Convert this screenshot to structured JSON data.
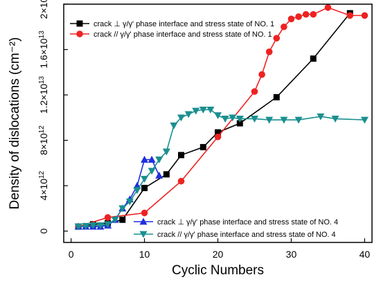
{
  "chart_data": {
    "type": "line",
    "title": "",
    "xlabel": "Cyclic Numbers",
    "ylabel": "Density of dislocations (cm⁻²)",
    "xlim": [
      -1,
      41
    ],
    "ylim": [
      -1000000000000.0,
      20000000000000.0
    ],
    "grid": false,
    "legend_placement": [
      "top-left",
      "bottom-right"
    ],
    "x_ticks": [
      {
        "value": 0,
        "label": "0"
      },
      {
        "value": 10,
        "label": "10"
      },
      {
        "value": 20,
        "label": "20"
      },
      {
        "value": 30,
        "label": "30"
      },
      {
        "value": 40,
        "label": "40"
      }
    ],
    "y_ticks": [
      {
        "value": 0,
        "mantissa": "0",
        "exp": ""
      },
      {
        "value": 4000000000000.0,
        "mantissa": "4×10",
        "exp": "12"
      },
      {
        "value": 8000000000000.0,
        "mantissa": "8×10",
        "exp": "12"
      },
      {
        "value": 12000000000000.0,
        "mantissa": "1.2×10",
        "exp": "13"
      },
      {
        "value": 16000000000000.0,
        "mantissa": "1.6×10",
        "exp": "13"
      },
      {
        "value": 20000000000000.0,
        "mantissa": "2×10",
        "exp": "13"
      }
    ],
    "series": [
      {
        "name": "crack ⊥ γ/γ' phase interface and stress state of NO. 1",
        "color": "#000000",
        "marker": "square",
        "legend": "top",
        "x": [
          1,
          3,
          5,
          7,
          10,
          13,
          15,
          18,
          20,
          23,
          28,
          33,
          38
        ],
        "y": [
          400000000000.0,
          600000000000.0,
          700000000000.0,
          1000000000000.0,
          3800000000000.0,
          5000000000000.0,
          6700000000000.0,
          7400000000000.0,
          8700000000000.0,
          9500000000000.0,
          11800000000000.0,
          15200000000000.0,
          19200000000000.0
        ]
      },
      {
        "name": "crack // γ/γ' phase interface and stress state of NO. 1",
        "color": "#ee2222",
        "marker": "circle",
        "legend": "top",
        "x": [
          1,
          5,
          10,
          15,
          20,
          25,
          26,
          27,
          28,
          29,
          30,
          31,
          32,
          33,
          35,
          38,
          40
        ],
        "y": [
          400000000000.0,
          1200000000000.0,
          1600000000000.0,
          4400000000000.0,
          8300000000000.0,
          12300000000000.0,
          13800000000000.0,
          15800000000000.0,
          17000000000000.0,
          18000000000000.0,
          18700000000000.0,
          18900000000000.0,
          19100000000000.0,
          19100000000000.0,
          19700000000000.0,
          19000000000000.0,
          19000000000000.0
        ]
      },
      {
        "name": "crack ⊥ γ/γ' phase interface  and stress state of NO. 4",
        "color": "#1f2fdd",
        "marker": "triangle-up",
        "legend": "bottom",
        "x": [
          1,
          2,
          3,
          4,
          5,
          6,
          7,
          8,
          9,
          10,
          11,
          12
        ],
        "y": [
          400000000000.0,
          400000000000.0,
          400000000000.0,
          400000000000.0,
          500000000000.0,
          1000000000000.0,
          2000000000000.0,
          2800000000000.0,
          4000000000000.0,
          6300000000000.0,
          6300000000000.0,
          4900000000000.0
        ]
      },
      {
        "name": "crack // γ/γ' phase interface  and stress state of NO. 4",
        "color": "#1a8f8f",
        "marker": "triangle-down",
        "legend": "bottom",
        "x": [
          1,
          2,
          3,
          4,
          5,
          6,
          7,
          8,
          9,
          10,
          11,
          12,
          13,
          14,
          15,
          16,
          17,
          18,
          19,
          20,
          21,
          22,
          23,
          25,
          27,
          29,
          31,
          34,
          36,
          40
        ],
        "y": [
          400000000000.0,
          450000000000.0,
          500000000000.0,
          500000000000.0,
          600000000000.0,
          1000000000000.0,
          2000000000000.0,
          2600000000000.0,
          3600000000000.0,
          4600000000000.0,
          5300000000000.0,
          6300000000000.0,
          7000000000000.0,
          9300000000000.0,
          10000000000000.0,
          10300000000000.0,
          10600000000000.0,
          10700000000000.0,
          10700000000000.0,
          10200000000000.0,
          9900000000000.0,
          10000000000000.0,
          9900000000000.0,
          9900000000000.0,
          9800000000000.0,
          9800000000000.0,
          9800000000000.0,
          10100000000000.0,
          9900000000000.0,
          9800000000000.0
        ]
      }
    ]
  }
}
